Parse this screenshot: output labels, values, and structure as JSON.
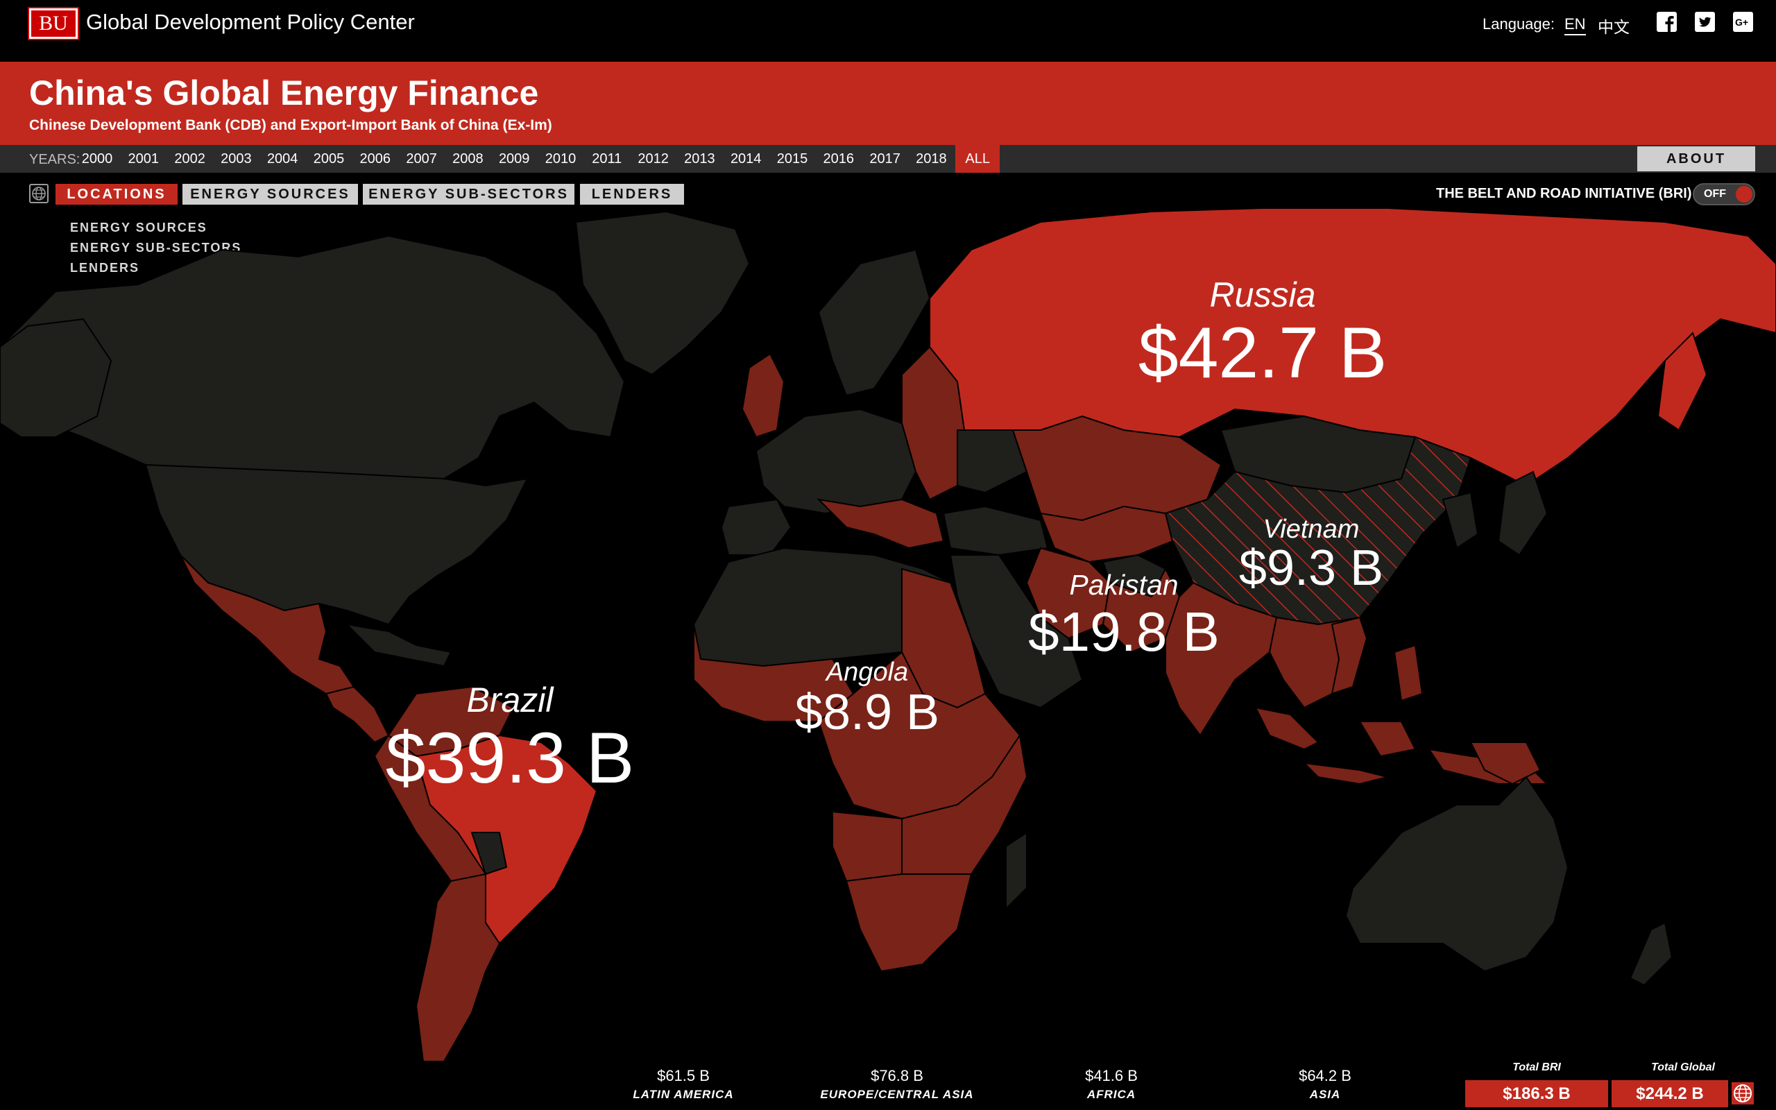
{
  "top_bar": {
    "logo_text": "BU",
    "org_name": "Global Development Policy Center",
    "language_label": "Language:",
    "language_en": "EN",
    "language_zh": "中文",
    "social_icons": [
      "facebook-icon",
      "twitter-icon",
      "google-plus-icon"
    ]
  },
  "header": {
    "title": "China's Global Energy Finance",
    "subtitle": "Chinese Development Bank (CDB) and Export-Import Bank of China (Ex-Im)"
  },
  "years_bar": {
    "label": "YEARS:",
    "years": [
      "2000",
      "2001",
      "2002",
      "2003",
      "2004",
      "2005",
      "2006",
      "2007",
      "2008",
      "2009",
      "2010",
      "2011",
      "2012",
      "2013",
      "2014",
      "2015",
      "2016",
      "2017",
      "2018",
      "ALL"
    ],
    "selected": "ALL",
    "about_label": "ABOUT"
  },
  "tabs": {
    "items": [
      "LOCATIONS",
      "ENERGY SOURCES",
      "ENERGY SUB-SECTORS",
      "LENDERS"
    ],
    "active": "LOCATIONS",
    "sub_menu": [
      "ENERGY SOURCES",
      "ENERGY SUB-SECTORS",
      "LENDERS"
    ]
  },
  "bri": {
    "label": "THE BELT AND ROAD INITIATIVE (BRI)",
    "toggle_state": "OFF"
  },
  "map": {
    "colors": {
      "background": "#000000",
      "land_default": "#1f1f1c",
      "land_low": "#7a2318",
      "land_high": "#c1291e",
      "border": "#000000"
    },
    "labels": [
      {
        "country": "Russia",
        "value": "$42.7 B"
      },
      {
        "country": "Brazil",
        "value": "$39.3 B"
      },
      {
        "country": "Pakistan",
        "value": "$19.8 B"
      },
      {
        "country": "Vietnam",
        "value": "$9.3 B"
      },
      {
        "country": "Angola",
        "value": "$8.9 B"
      }
    ]
  },
  "regions": [
    {
      "value": "$61.5 B",
      "name": "LATIN AMERICA"
    },
    {
      "value": "$76.8 B",
      "name": "EUROPE/CENTRAL ASIA"
    },
    {
      "value": "$41.6 B",
      "name": "AFRICA"
    },
    {
      "value": "$64.2 B",
      "name": "ASIA"
    }
  ],
  "totals": {
    "bri_label": "Total BRI",
    "bri_value": "$186.3 B",
    "global_label": "Total Global",
    "global_value": "$244.2 B"
  }
}
